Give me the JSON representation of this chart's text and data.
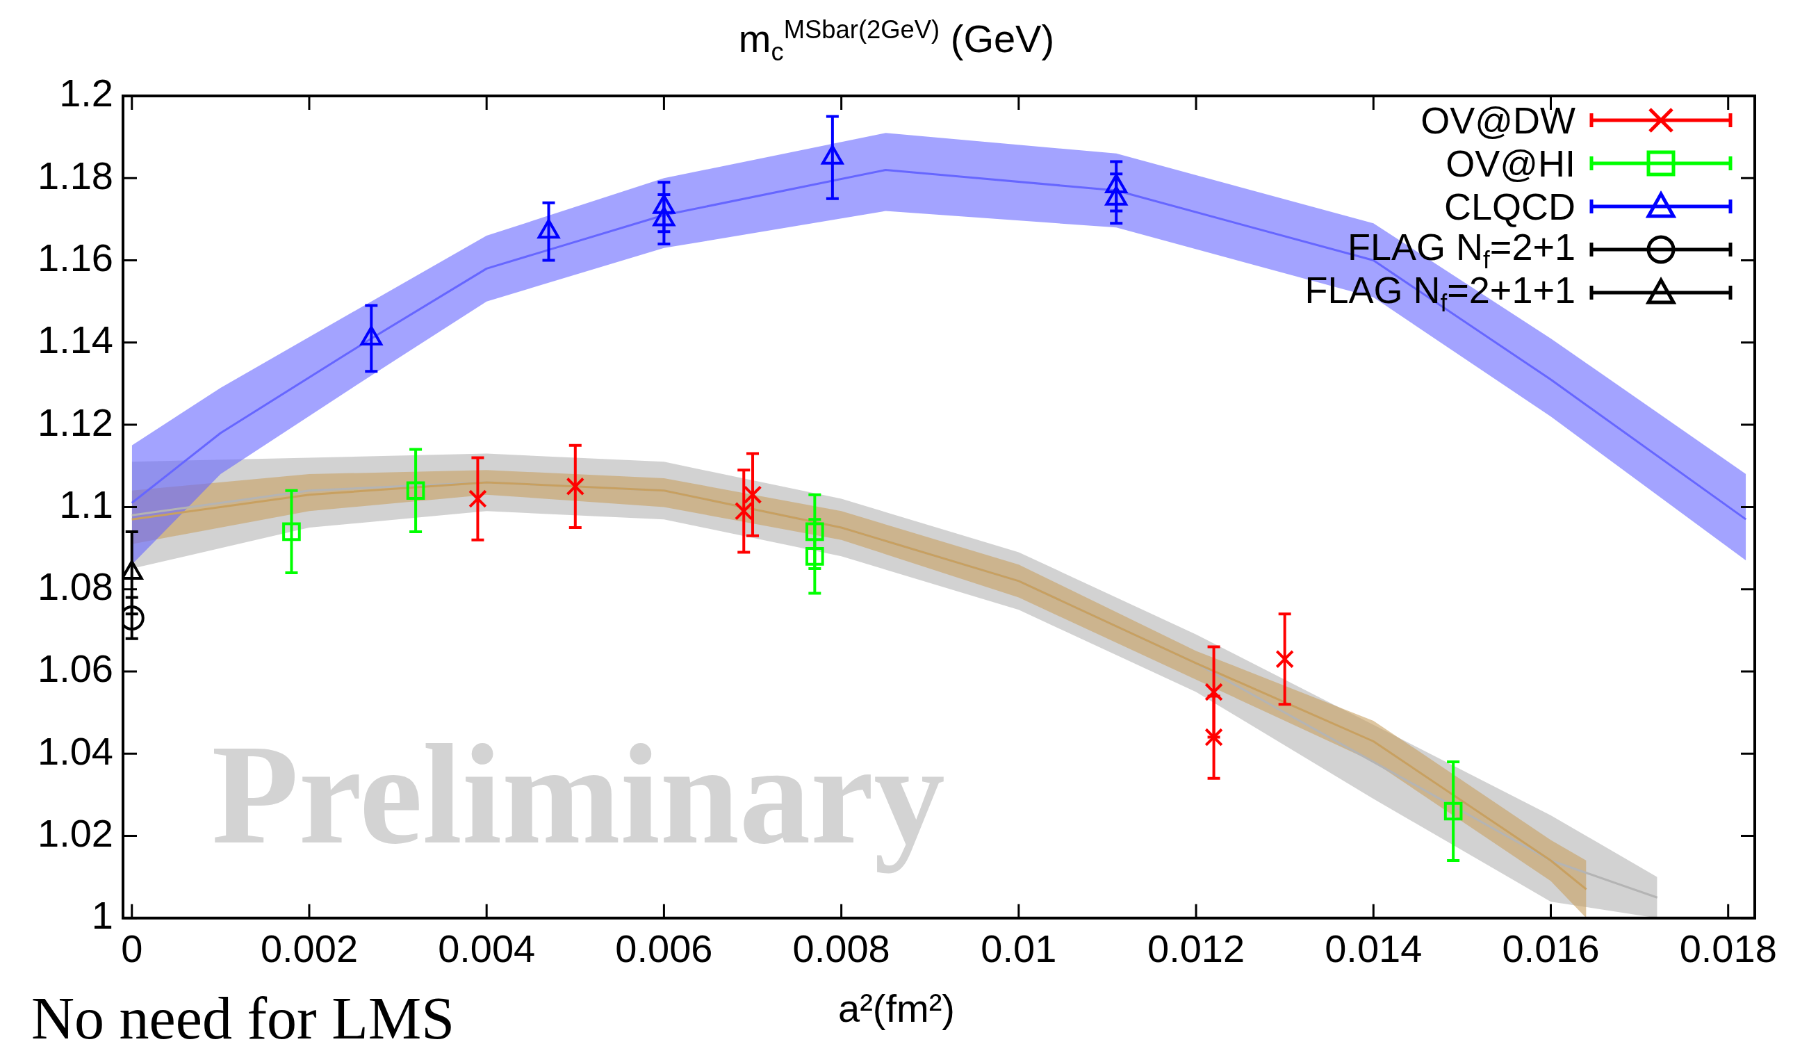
{
  "chart_data": {
    "type": "scatter",
    "title": "m$_{c}$$^{MSbar(2GeV)}$ (GeV)",
    "xlabel": "a²(fm²)",
    "annotations": [
      "Preliminary",
      "No need for LMS"
    ],
    "xlim": [
      -0.0001,
      0.0183
    ],
    "xticks": [
      0,
      0.002,
      0.004,
      0.006,
      0.008,
      0.01,
      0.012,
      0.014,
      0.016,
      0.018
    ],
    "ylim": [
      1,
      1.2
    ],
    "yticks": [
      1,
      1.02,
      1.04,
      1.06,
      1.08,
      1.1,
      1.12,
      1.14,
      1.16,
      1.18,
      1.2
    ],
    "grid": false,
    "legend": "top right",
    "series": [
      {
        "type": "line",
        "color": "#b4b4b4",
        "x": [
          0,
          0.002,
          0.004,
          0.006,
          0.008,
          0.01,
          0.012,
          0.014,
          0.016,
          0.0172
        ],
        "values": [
          1.098,
          1.104,
          1.106,
          1.104,
          1.095,
          1.082,
          1.062,
          1.038,
          1.014,
          1.005
        ],
        "lower": [
          1.085,
          1.095,
          1.099,
          1.097,
          1.088,
          1.075,
          1.055,
          1.029,
          1.004,
          1.0
        ],
        "upper": [
          1.111,
          1.112,
          1.113,
          1.111,
          1.102,
          1.089,
          1.069,
          1.047,
          1.025,
          1.01
        ]
      },
      {
        "type": "line",
        "color": "#c8a060",
        "x": [
          0,
          0.002,
          0.004,
          0.006,
          0.008,
          0.01,
          0.012,
          0.014,
          0.016,
          0.0164
        ],
        "values": [
          1.097,
          1.103,
          1.106,
          1.104,
          1.095,
          1.082,
          1.062,
          1.043,
          1.014,
          1.007
        ],
        "lower": [
          1.091,
          1.099,
          1.103,
          1.1,
          1.092,
          1.078,
          1.058,
          1.038,
          1.009,
          1.0
        ],
        "upper": [
          1.104,
          1.108,
          1.109,
          1.107,
          1.099,
          1.086,
          1.065,
          1.048,
          1.019,
          1.014
        ]
      },
      {
        "type": "line",
        "color": "#6666ff",
        "x": [
          0,
          0.001,
          0.0027,
          0.004,
          0.006,
          0.0085,
          0.0111,
          0.014,
          0.016,
          0.0182
        ],
        "values": [
          1.101,
          1.118,
          1.141,
          1.158,
          1.171,
          1.182,
          1.177,
          1.16,
          1.131,
          1.097
        ],
        "lower": [
          1.086,
          1.108,
          1.132,
          1.15,
          1.163,
          1.172,
          1.168,
          1.151,
          1.122,
          1.087
        ],
        "upper": [
          1.115,
          1.129,
          1.15,
          1.166,
          1.18,
          1.191,
          1.186,
          1.169,
          1.141,
          1.108
        ]
      },
      {
        "name": "OV@DW",
        "color": "#ff0000",
        "marker": "cross",
        "x": [
          0.0039,
          0.005,
          0.0069,
          0.007,
          0.0122,
          0.0122,
          0.013
        ],
        "values": [
          1.102,
          1.105,
          1.099,
          1.103,
          1.055,
          1.044,
          1.063
        ],
        "errors": [
          0.01,
          0.01,
          0.01,
          0.01,
          0.011,
          0.01,
          0.011
        ]
      },
      {
        "name": "OV@HI",
        "color": "#00ff00",
        "marker": "square",
        "x": [
          0.0018,
          0.0032,
          0.0077,
          0.0077,
          0.0149
        ],
        "values": [
          1.094,
          1.104,
          1.094,
          1.088,
          1.026
        ],
        "errors": [
          0.01,
          0.01,
          0.009,
          0.009,
          0.012
        ]
      },
      {
        "name": "CLQCD",
        "color": "#0000ff",
        "marker": "triangle",
        "x": [
          0.0027,
          0.0047,
          0.006,
          0.006,
          0.0079,
          0.0111,
          0.0111
        ],
        "values": [
          1.141,
          1.167,
          1.173,
          1.17,
          1.185,
          1.178,
          1.175
        ],
        "errors": [
          0.008,
          0.007,
          0.006,
          0.006,
          0.01,
          0.006,
          0.006
        ]
      },
      {
        "name": "FLAG N$_{f}$=2+1",
        "color": "#000000",
        "marker": "circle",
        "x": [
          0
        ],
        "values": [
          1.073
        ],
        "errors": [
          0.005
        ]
      },
      {
        "name": "FLAG N$_{f}$=2+1+1",
        "color": "#000000",
        "marker": "triangle",
        "x": [
          0
        ],
        "values": [
          1.084
        ],
        "errors": [
          0.01
        ]
      }
    ]
  }
}
